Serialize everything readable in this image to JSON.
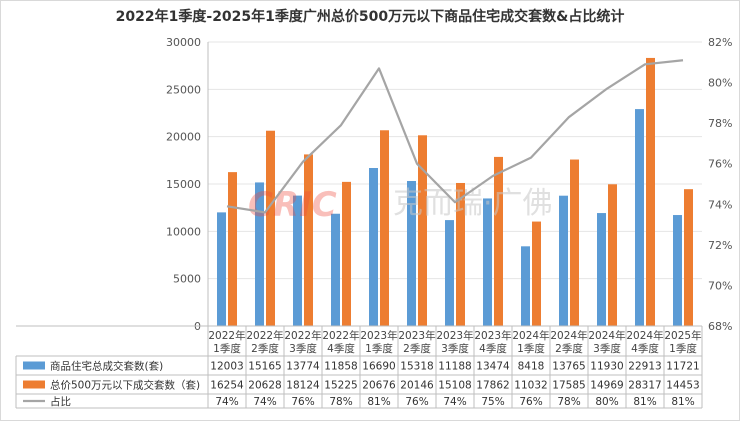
{
  "chart_data": {
    "type": "bar",
    "title": "2022年1季度-2025年1季度广州总价500万元以下商品住宅成交套数&占比统计",
    "categories": [
      [
        "2022年",
        "1季度"
      ],
      [
        "2022年",
        "2季度"
      ],
      [
        "2022年",
        "3季度"
      ],
      [
        "2022年",
        "4季度"
      ],
      [
        "2023年",
        "1季度"
      ],
      [
        "2023年",
        "2季度"
      ],
      [
        "2023年",
        "3季度"
      ],
      [
        "2023年",
        "4季度"
      ],
      [
        "2024年",
        "1季度"
      ],
      [
        "2024年",
        "2季度"
      ],
      [
        "2024年",
        "3季度"
      ],
      [
        "2024年",
        "4季度"
      ],
      [
        "2025年",
        "1季度"
      ]
    ],
    "series": [
      {
        "name": "商品住宅总成交套数(套)",
        "color": "#5b9bd5",
        "values": [
          12003,
          15165,
          13774,
          11858,
          16690,
          15318,
          11188,
          13474,
          8418,
          13765,
          11930,
          22913,
          11721
        ]
      },
      {
        "name": "总价500万元以下成交套数（套)",
        "color": "#ed7d31",
        "values": [
          16254,
          20628,
          18124,
          15225,
          20676,
          20146,
          15108,
          17862,
          11032,
          17585,
          14969,
          28317,
          14453
        ]
      }
    ],
    "ratio": {
      "name": "占比",
      "color": "#a5a5a5",
      "labels": [
        "74%",
        "74%",
        "76%",
        "78%",
        "81%",
        "76%",
        "74%",
        "75%",
        "76%",
        "78%",
        "80%",
        "81%",
        "81%"
      ],
      "values": [
        73.9,
        73.6,
        76.1,
        77.9,
        80.7,
        76.0,
        74.1,
        75.4,
        76.3,
        78.3,
        79.7,
        80.9,
        81.1
      ]
    },
    "y_left": {
      "min": 0,
      "max": 30000,
      "ticks": [
        "0",
        "5000",
        "10000",
        "15000",
        "20000",
        "25000",
        "30000"
      ]
    },
    "y_right": {
      "min": 68,
      "max": 82,
      "ticks": [
        "68%",
        "70%",
        "72%",
        "74%",
        "76%",
        "78%",
        "80%",
        "82%"
      ]
    },
    "grid": true,
    "legend": "data-table-bottom"
  },
  "watermark": {
    "logo": "CRIC",
    "text": "克而瑞·广佛"
  }
}
